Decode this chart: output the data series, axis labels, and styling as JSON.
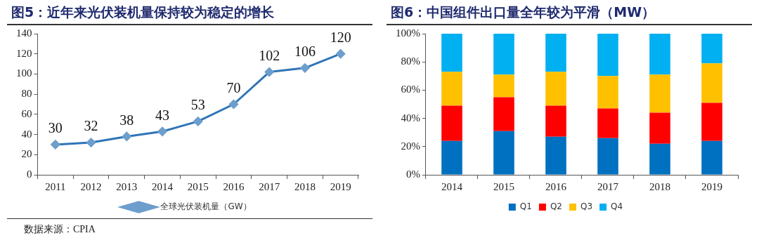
{
  "chart_data": [
    {
      "type": "line",
      "title": "图5：近年来光伏装机量保持较为稳定的增长",
      "categories": [
        "2011",
        "2012",
        "2013",
        "2014",
        "2015",
        "2016",
        "2017",
        "2018",
        "2019"
      ],
      "series": [
        {
          "name": "全球光伏装机量（GW）",
          "color": "#2e75b6",
          "values": [
            30,
            32,
            38,
            43,
            53,
            70,
            102,
            106,
            120
          ]
        }
      ],
      "ylim": [
        0,
        140
      ],
      "yticks": [
        0,
        20,
        40,
        60,
        80,
        100,
        120,
        140
      ],
      "grid": false,
      "legend": "bottom",
      "marker": "diamond",
      "data_labels": true,
      "annotations": [
        "数据来源：CPIA"
      ]
    },
    {
      "type": "bar",
      "title": "图6：中国组件出口量全年较为平滑（MW）",
      "categories": [
        "2014",
        "2015",
        "2016",
        "2017",
        "2018",
        "2019"
      ],
      "stacked": true,
      "series": [
        {
          "name": "Q1",
          "color": "#0070c0",
          "values": [
            24,
            31,
            27,
            26,
            22,
            24
          ]
        },
        {
          "name": "Q2",
          "color": "#ff0000",
          "values": [
            25,
            24,
            22,
            21,
            22,
            27
          ]
        },
        {
          "name": "Q3",
          "color": "#ffc000",
          "values": [
            24,
            16,
            24,
            23,
            27,
            28
          ]
        },
        {
          "name": "Q4",
          "color": "#00b0f0",
          "values": [
            27,
            29,
            27,
            30,
            29,
            21
          ]
        }
      ],
      "ylim": [
        0,
        100
      ],
      "yticks": [
        {
          "value": 0,
          "label": "0%"
        },
        {
          "value": 20,
          "label": "20%"
        },
        {
          "value": 40,
          "label": "40%"
        },
        {
          "value": 60,
          "label": "60%"
        },
        {
          "value": 80,
          "label": "80%"
        },
        {
          "value": 100,
          "label": "100%"
        }
      ],
      "grid": false,
      "legend": "bottom"
    }
  ]
}
